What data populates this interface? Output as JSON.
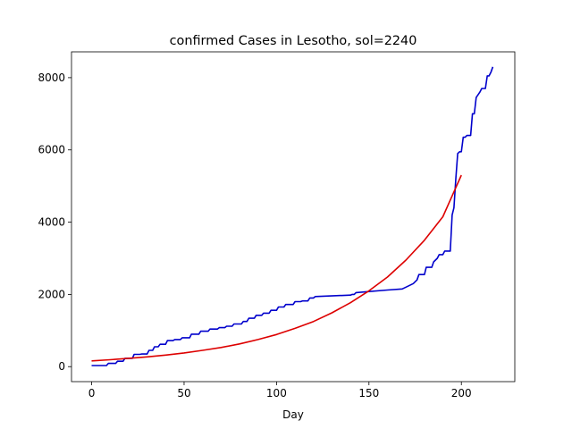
{
  "chart_data": {
    "type": "line",
    "title": "confirmed Cases in Lesotho, sol=2240",
    "xlabel": "Day",
    "ylabel": "",
    "xlim": [
      -10.9,
      228.9
    ],
    "ylim": [
      -415,
      8715
    ],
    "xticks": [
      0,
      50,
      100,
      150,
      200
    ],
    "yticks": [
      0,
      2000,
      4000,
      6000,
      8000
    ],
    "grid": false,
    "legend": "none",
    "series": [
      {
        "color": "#0000cc",
        "x": [
          0,
          8,
          9,
          13,
          14,
          17,
          18,
          22,
          23,
          26,
          27,
          30,
          31,
          33,
          34,
          36,
          37,
          40,
          41,
          44,
          45,
          48,
          49,
          53,
          54,
          58,
          59,
          63,
          64,
          68,
          69,
          72,
          73,
          76,
          77,
          81,
          82,
          84,
          85,
          88,
          89,
          92,
          93,
          96,
          97,
          100,
          101,
          104,
          105,
          109,
          110,
          113,
          114,
          117,
          118,
          120,
          121,
          140,
          141,
          142,
          143,
          150,
          160,
          168,
          170,
          172,
          174,
          176,
          177,
          180,
          181,
          184,
          185,
          187,
          188,
          190,
          191,
          194,
          195,
          196,
          197,
          198,
          199,
          200,
          201,
          202,
          203,
          205,
          206,
          207,
          208,
          210,
          211,
          213,
          214,
          215,
          216,
          217
        ],
        "y": [
          30,
          30,
          90,
          90,
          150,
          150,
          230,
          230,
          340,
          340,
          350,
          350,
          450,
          450,
          550,
          550,
          620,
          620,
          720,
          720,
          750,
          750,
          800,
          800,
          900,
          900,
          980,
          980,
          1040,
          1040,
          1080,
          1080,
          1120,
          1120,
          1180,
          1180,
          1250,
          1250,
          1340,
          1340,
          1420,
          1420,
          1480,
          1480,
          1560,
          1560,
          1650,
          1650,
          1720,
          1720,
          1800,
          1800,
          1820,
          1820,
          1900,
          1900,
          1940,
          1980,
          2000,
          2000,
          2050,
          2080,
          2120,
          2150,
          2200,
          2250,
          2300,
          2400,
          2550,
          2550,
          2750,
          2750,
          2900,
          3000,
          3100,
          3100,
          3200,
          3200,
          4200,
          4400,
          5200,
          5900,
          5950,
          5950,
          6350,
          6350,
          6400,
          6400,
          7000,
          7000,
          7450,
          7600,
          7700,
          7700,
          8050,
          8050,
          8150,
          8300
        ]
      },
      {
        "color": "#dd0000",
        "x": [
          0,
          10,
          20,
          30,
          40,
          50,
          60,
          70,
          80,
          90,
          100,
          110,
          120,
          130,
          140,
          150,
          160,
          170,
          180,
          190,
          200
        ],
        "y": [
          160,
          190,
          230,
          270,
          320,
          380,
          450,
          530,
          630,
          750,
          890,
          1060,
          1250,
          1490,
          1770,
          2100,
          2480,
          2950,
          3500,
          4150,
          5300
        ]
      }
    ]
  }
}
